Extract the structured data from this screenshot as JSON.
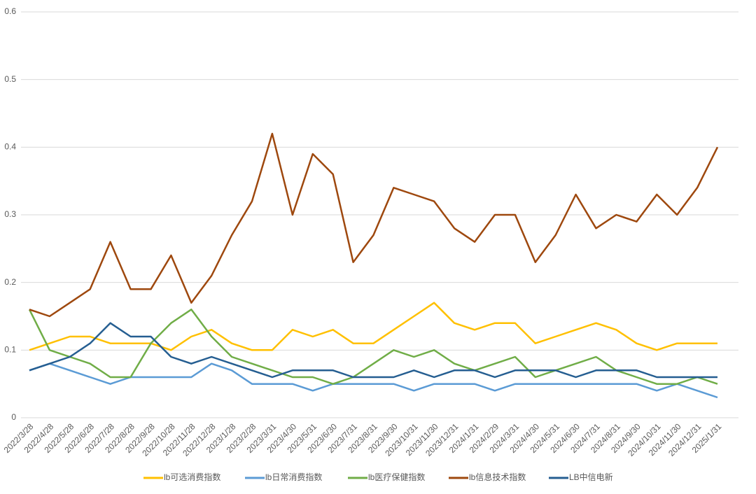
{
  "chart_data": {
    "type": "line",
    "categories": [
      "2022/3/28",
      "2022/4/28",
      "2022/5/28",
      "2022/6/28",
      "2022/7/28",
      "2022/8/28",
      "2022/9/28",
      "2022/10/28",
      "2022/11/28",
      "2022/12/28",
      "2023/1/28",
      "2023/2/28",
      "2023/3/31",
      "2023/4/30",
      "2023/5/31",
      "2023/6/30",
      "2023/7/31",
      "2023/8/31",
      "2023/9/30",
      "2023/10/31",
      "2023/11/30",
      "2023/12/31",
      "2024/1/31",
      "2024/2/29",
      "2024/3/31",
      "2024/4/30",
      "2024/5/31",
      "2024/6/30",
      "2024/7/31",
      "2024/8/31",
      "2024/9/30",
      "2024/10/31",
      "2024/11/30",
      "2024/12/31",
      "2025/1/31"
    ],
    "ylim": [
      0,
      0.6
    ],
    "yticks": [
      0,
      0.1,
      0.2,
      0.3,
      0.4,
      0.5,
      0.6
    ],
    "grid": true,
    "series": [
      {
        "name": "lb可选消费指数",
        "color": "#ffc000",
        "values": [
          0.1,
          0.11,
          0.12,
          0.12,
          0.11,
          0.11,
          0.11,
          0.1,
          0.12,
          0.13,
          0.11,
          0.1,
          0.1,
          0.13,
          0.12,
          0.13,
          0.11,
          0.11,
          0.13,
          0.15,
          0.17,
          0.14,
          0.13,
          0.14,
          0.14,
          0.11,
          0.12,
          0.13,
          0.14,
          0.13,
          0.11,
          0.1,
          0.11,
          0.11,
          0.11
        ]
      },
      {
        "name": "lb日常消费指数",
        "color": "#5b9bd5",
        "values": [
          0.07,
          0.08,
          0.07,
          0.06,
          0.05,
          0.06,
          0.06,
          0.06,
          0.06,
          0.08,
          0.07,
          0.05,
          0.05,
          0.05,
          0.04,
          0.05,
          0.05,
          0.05,
          0.05,
          0.04,
          0.05,
          0.05,
          0.05,
          0.04,
          0.05,
          0.05,
          0.05,
          0.05,
          0.05,
          0.05,
          0.05,
          0.04,
          0.05,
          0.04,
          0.03
        ]
      },
      {
        "name": "lb医疗保健指数",
        "color": "#70ad47",
        "values": [
          0.16,
          0.1,
          0.09,
          0.08,
          0.06,
          0.06,
          0.11,
          0.14,
          0.16,
          0.12,
          0.09,
          0.08,
          0.07,
          0.06,
          0.06,
          0.05,
          0.06,
          0.08,
          0.1,
          0.09,
          0.1,
          0.08,
          0.07,
          0.08,
          0.09,
          0.06,
          0.07,
          0.08,
          0.09,
          0.07,
          0.06,
          0.05,
          0.05,
          0.06,
          0.05
        ]
      },
      {
        "name": "lb信息技术指数",
        "color": "#9e480e",
        "values": [
          0.16,
          0.15,
          0.17,
          0.19,
          0.26,
          0.19,
          0.19,
          0.24,
          0.17,
          0.21,
          0.27,
          0.32,
          0.42,
          0.3,
          0.39,
          0.36,
          0.23,
          0.27,
          0.34,
          0.33,
          0.32,
          0.28,
          0.26,
          0.3,
          0.3,
          0.23,
          0.27,
          0.33,
          0.28,
          0.3,
          0.29,
          0.33,
          0.3,
          0.34,
          0.4
        ]
      },
      {
        "name": "LB中信电新",
        "color": "#255e91",
        "values": [
          0.07,
          0.08,
          0.09,
          0.11,
          0.14,
          0.12,
          0.12,
          0.09,
          0.08,
          0.09,
          0.08,
          0.07,
          0.06,
          0.07,
          0.07,
          0.07,
          0.06,
          0.06,
          0.06,
          0.07,
          0.06,
          0.07,
          0.07,
          0.06,
          0.07,
          0.07,
          0.07,
          0.06,
          0.07,
          0.07,
          0.07,
          0.06,
          0.06,
          0.06,
          0.06
        ]
      }
    ]
  }
}
